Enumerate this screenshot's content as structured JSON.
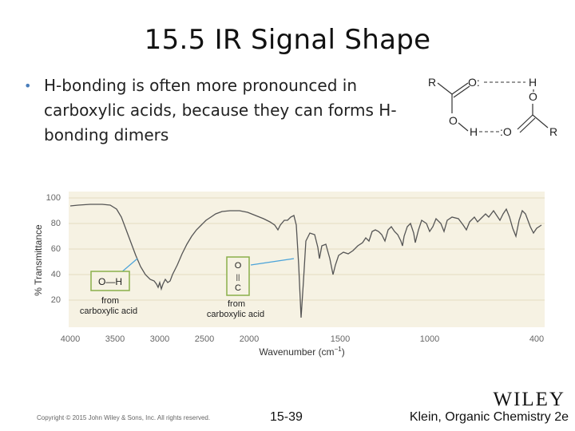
{
  "slide": {
    "title": "15.5 IR Signal Shape",
    "bullet": "H-bonding is often more pronounced in carboxylic acids, because they can forms H-bonding dimers"
  },
  "dimer": {
    "r_top": "R",
    "o_top": "O:",
    "h_top": "H",
    "o_right": "O",
    "o_left": "O",
    "h_bottom": "H",
    "o_bottom": ":O",
    "r_bottom": "R"
  },
  "spectrum": {
    "y_label": "% Transmittance",
    "x_label": "Wavenumber (cm",
    "x_label_sup": "−1",
    "x_label_end": ")",
    "y_ticks": [
      "100",
      "80",
      "60",
      "40",
      "20"
    ],
    "x_ticks": [
      "4000",
      "3500",
      "3000",
      "2500",
      "2000",
      "1500",
      "1000",
      "400"
    ],
    "oh_box": "O—H",
    "oh_note_1": "from",
    "oh_note_2": "carboxylic acid",
    "co_top": "O",
    "co_bond": "||",
    "co_bottom": "C",
    "co_note_1": "from",
    "co_note_2": "carboxylic acid",
    "colors": {
      "plot_bg": "#f6f2e3",
      "trace": "#555555",
      "callout": "#4aa3d9",
      "box_border": "#8ab04a"
    }
  },
  "footer": {
    "copyright": "Copyright © 2015 John Wiley & Sons, Inc. All rights reserved.",
    "page": "15-39",
    "book": "Klein, Organic Chemistry 2e",
    "logo": "WILEY"
  }
}
